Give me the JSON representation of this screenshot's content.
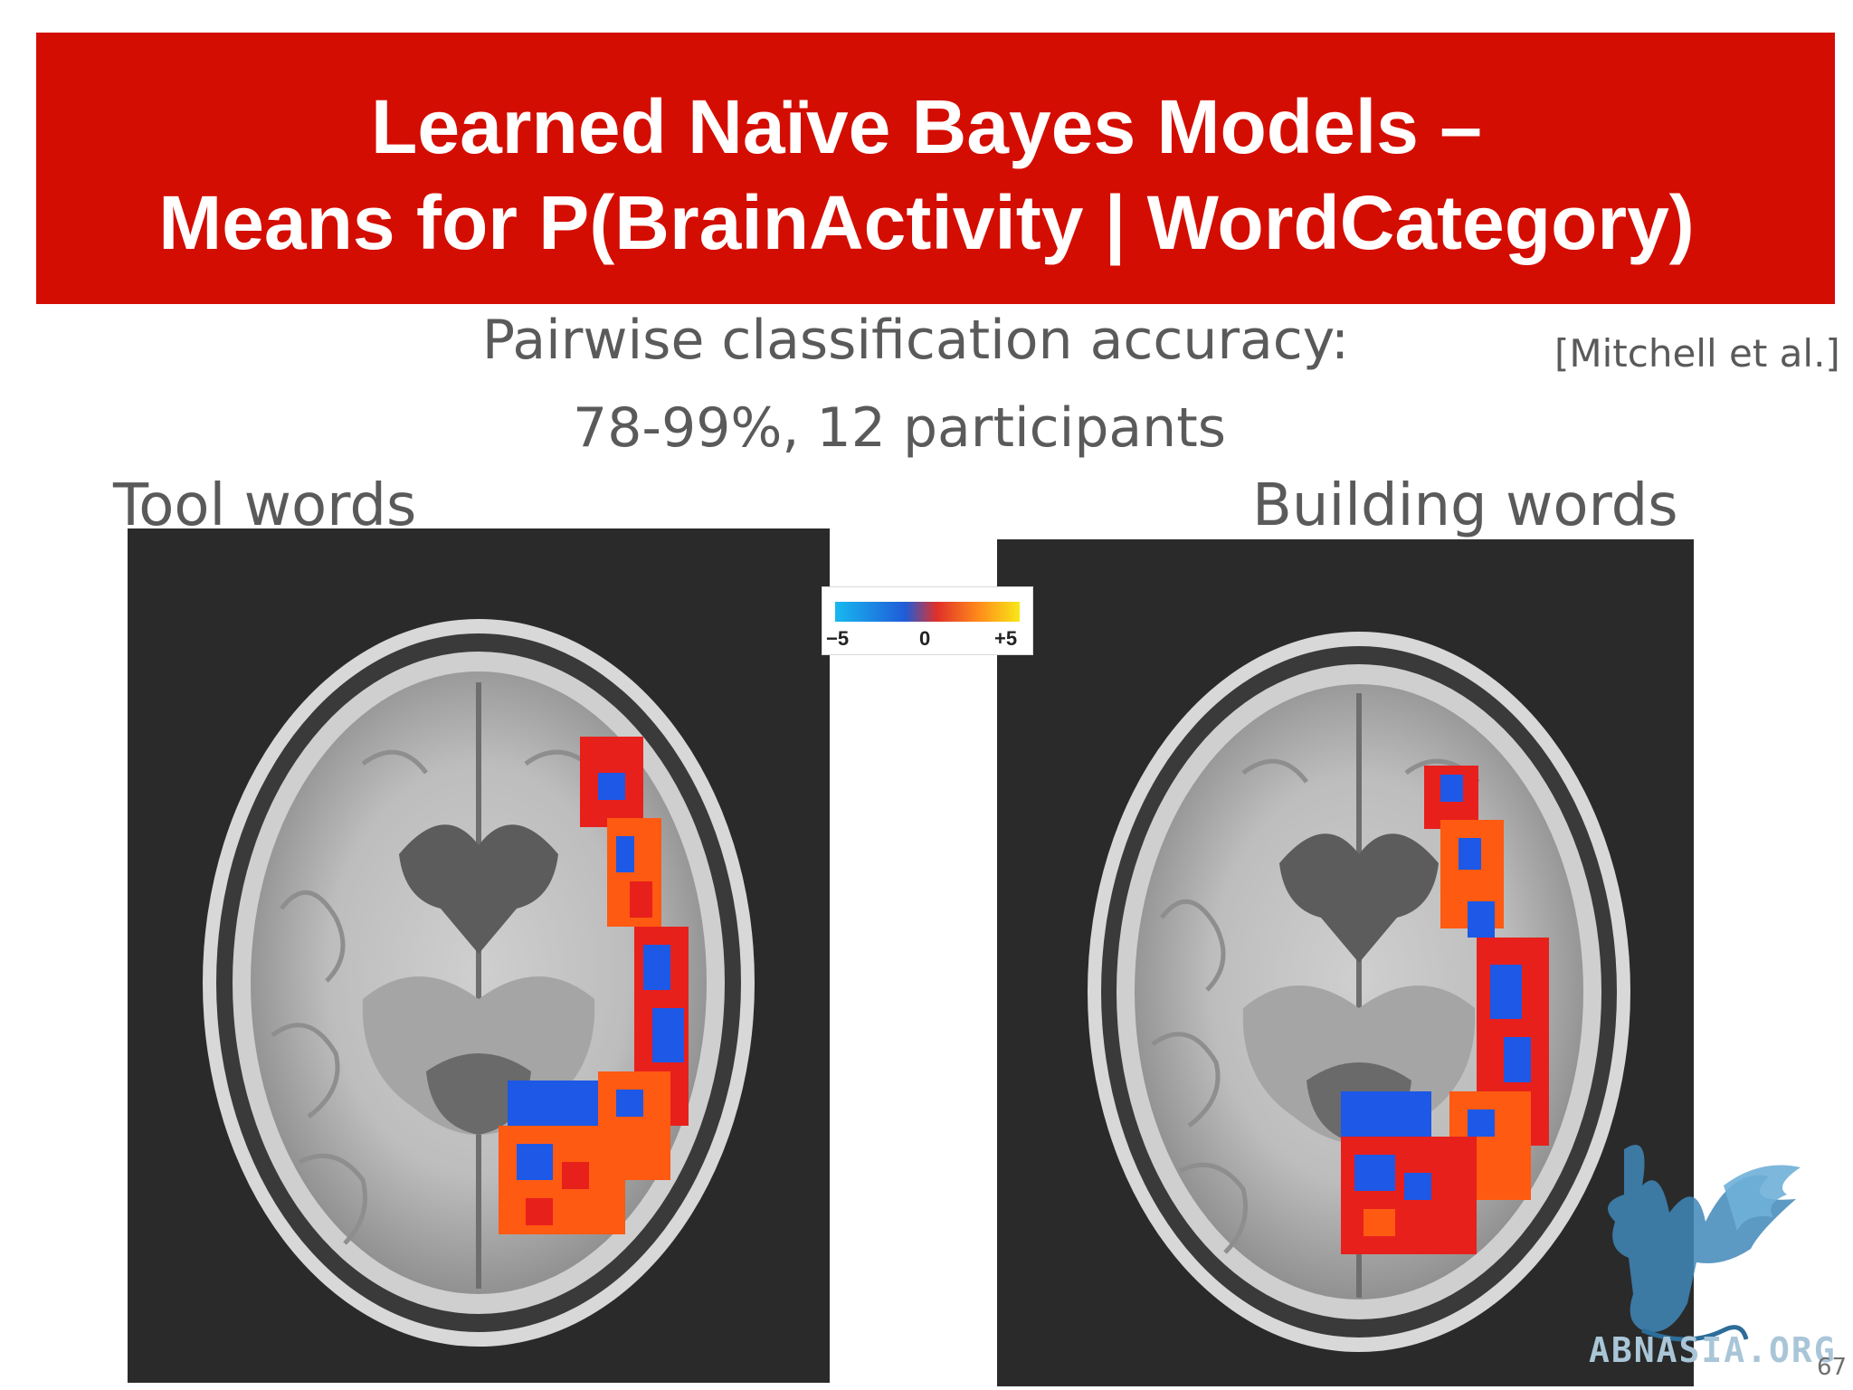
{
  "title": {
    "line1": "Learned Naïve Bayes Models –",
    "line2": "Means for P(BrainActivity | WordCategory)"
  },
  "subtitle": {
    "line1": "Pairwise classification accuracy:",
    "line2": "78-99%,  12 participants"
  },
  "citation": "[Mitchell et al.]",
  "panels": {
    "left_label": "Tool words",
    "right_label": "Building words"
  },
  "colorbar": {
    "min_label": "−5",
    "mid_label": "0",
    "max_label": "+5"
  },
  "watermark": "ABNASIA.ORG",
  "page_number": "67",
  "colors": {
    "title_bg": "#d40d02",
    "title_text": "#ffffff",
    "body_text": "#5a5a5a",
    "activation_red": "#e8201c",
    "activation_orange": "#ff5a12",
    "activation_blue": "#1d58e6"
  }
}
